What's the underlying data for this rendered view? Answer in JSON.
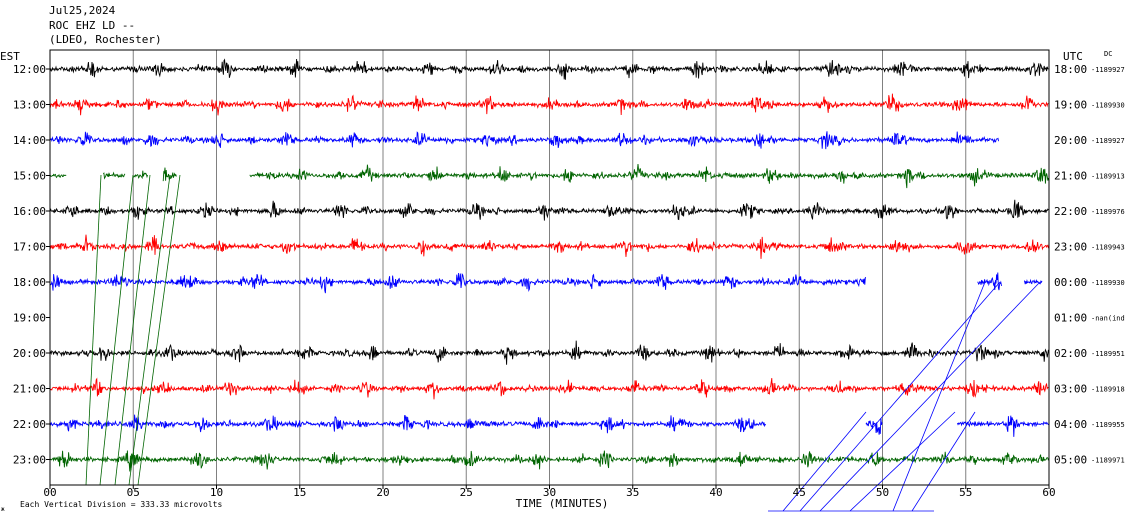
{
  "header": {
    "date": "Jul25,2024",
    "station": "ROC EHZ LD --",
    "location": "(LDEO, Rochester)"
  },
  "chart_data": {
    "type": "line",
    "title": "Jul25,2024",
    "subtitle": "ROC EHZ LD -- (LDEO, Rochester)",
    "left_axis_label": "EST",
    "right_axis_label": "UTC",
    "dc_label": "DC",
    "xlabel": "TIME (MINUTES)",
    "x_ticks": [
      "00",
      "05",
      "10",
      "15",
      "20",
      "25",
      "30",
      "35",
      "40",
      "45",
      "50",
      "55",
      "60"
    ],
    "xlim": [
      0,
      60
    ],
    "scale_note": "Each Vertical Division = 333.33 microvolts",
    "grid": true,
    "trace_colors": [
      "#000000",
      "#ff0000",
      "#0000ff",
      "#006400"
    ],
    "rows": [
      {
        "est": "12:00",
        "utc": "18:00",
        "dc": "-1189927",
        "color": "#000000",
        "segments": [
          [
            0,
            60
          ]
        ]
      },
      {
        "est": "13:00",
        "utc": "19:00",
        "dc": "-1189930",
        "color": "#ff0000",
        "segments": [
          [
            0,
            60
          ]
        ]
      },
      {
        "est": "14:00",
        "utc": "20:00",
        "dc": "-1189927",
        "color": "#0000ff",
        "segments": [
          [
            0,
            57
          ]
        ]
      },
      {
        "est": "15:00",
        "utc": "21:00",
        "dc": "-1189913",
        "color": "#006400",
        "segments": [
          [
            0,
            1
          ],
          [
            3.2,
            4.5
          ],
          [
            5,
            5.9
          ],
          [
            6.8,
            7.6
          ],
          [
            12,
            60
          ]
        ]
      },
      {
        "est": "16:00",
        "utc": "22:00",
        "dc": "-1189976",
        "color": "#000000",
        "segments": [
          [
            0,
            60
          ]
        ]
      },
      {
        "est": "17:00",
        "utc": "23:00",
        "dc": "-1189943",
        "color": "#ff0000",
        "segments": [
          [
            0,
            60
          ]
        ]
      },
      {
        "est": "18:00",
        "utc": "00:00",
        "dc": "-1189930",
        "color": "#0000ff",
        "segments": [
          [
            0,
            49
          ],
          [
            55.7,
            57.2
          ],
          [
            58.5,
            59.6
          ]
        ]
      },
      {
        "est": "19:00",
        "utc": "01:00",
        "dc": "-nan(ind",
        "color": "#006400",
        "segments": []
      },
      {
        "est": "20:00",
        "utc": "02:00",
        "dc": "-1189951",
        "color": "#000000",
        "segments": [
          [
            0,
            60
          ]
        ]
      },
      {
        "est": "21:00",
        "utc": "03:00",
        "dc": "-1189918",
        "color": "#ff0000",
        "segments": [
          [
            0,
            60
          ]
        ]
      },
      {
        "est": "22:00",
        "utc": "04:00",
        "dc": "-1189955",
        "color": "#0000ff",
        "segments": [
          [
            0,
            43
          ],
          [
            49,
            50
          ],
          [
            54.5,
            60
          ]
        ]
      },
      {
        "est": "23:00",
        "utc": "05:00",
        "dc": "-1189971",
        "color": "#006400",
        "segments": [
          [
            0,
            60
          ]
        ]
      }
    ]
  }
}
